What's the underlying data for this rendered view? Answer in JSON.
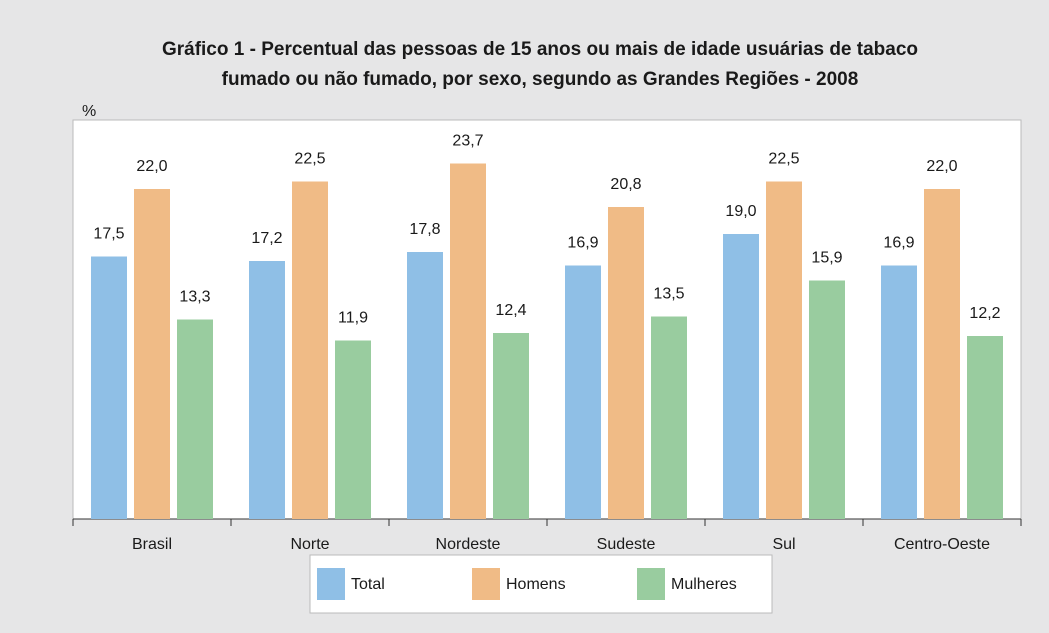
{
  "chart_data": {
    "type": "bar",
    "title": [
      "Gráfico 1 - Percentual das pessoas de 15 anos ou mais de idade usuárias de tabaco",
      "fumado ou não fumado, por sexo, segundo as Grandes Regiões - 2008"
    ],
    "y_label": "%",
    "categories": [
      "Brasil",
      "Norte",
      "Nordeste",
      "Sudeste",
      "Sul",
      "Centro-Oeste"
    ],
    "series": [
      {
        "name": "Total",
        "color": "#8fbfe6",
        "values": [
          17.5,
          17.2,
          17.8,
          16.9,
          19.0,
          16.9
        ],
        "value_labels": [
          "17,5",
          "17,2",
          "17,8",
          "16,9",
          "19,0",
          "16,9"
        ]
      },
      {
        "name": "Homens",
        "color": "#f0bb86",
        "values": [
          22.0,
          22.5,
          23.7,
          20.8,
          22.5,
          22.0
        ],
        "value_labels": [
          "22,0",
          "22,5",
          "23,7",
          "20,8",
          "22,5",
          "22,0"
        ]
      },
      {
        "name": "Mulheres",
        "color": "#99cc9f",
        "values": [
          13.3,
          11.9,
          12.4,
          13.5,
          15.9,
          12.2
        ],
        "value_labels": [
          "13,3",
          "11,9",
          "12,4",
          "13,5",
          "15,9",
          "12,2"
        ]
      }
    ],
    "ylim": [
      0,
      26.6
    ]
  }
}
